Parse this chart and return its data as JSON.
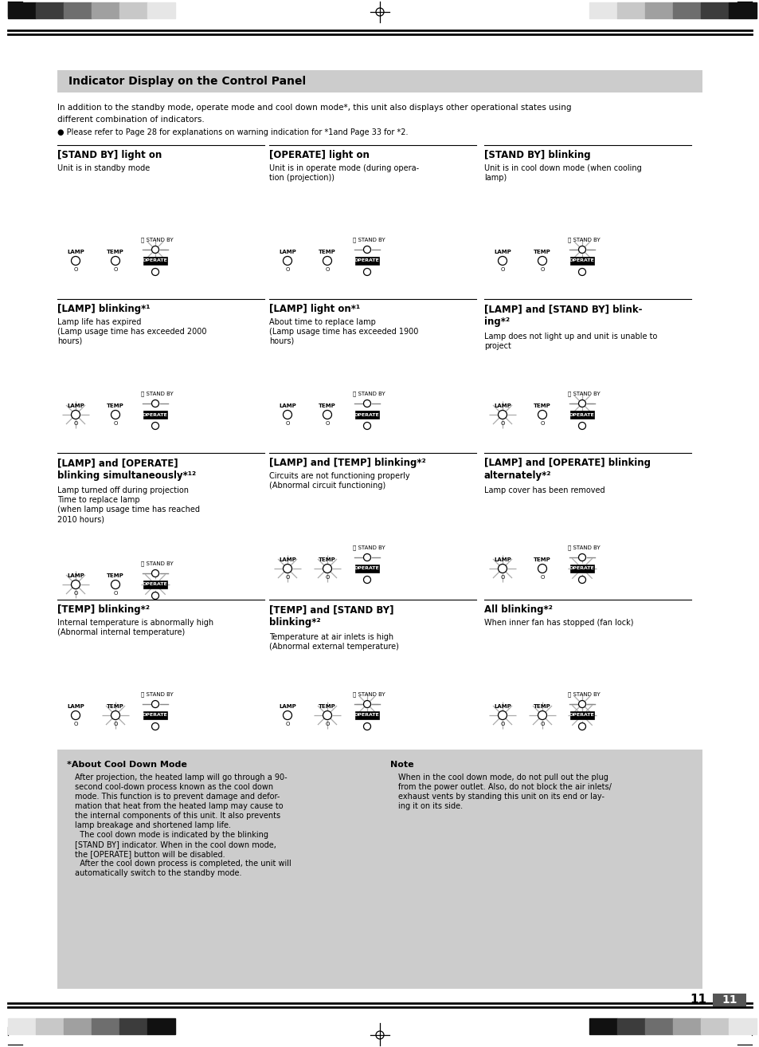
{
  "title": "Indicator Display on the Control Panel",
  "intro_line1": "In addition to the standby mode, operate mode and cool down mode*, this unit also displays other operational states using",
  "intro_line2": "different combination of indicators.",
  "bullet_text": "● Please refer to Page 28 for explanations on warning indication for *1and Page 33 for *2.",
  "sections": [
    {
      "title": "[STAND BY] light on",
      "title2": "",
      "desc": [
        "Unit is in standby mode"
      ],
      "lamp": false,
      "temp": false,
      "operate": true,
      "standby_glow": true,
      "standby_blink": false,
      "lamp_blink": false,
      "temp_blink": false,
      "operate_blink": false
    },
    {
      "title": "[OPERATE] light on",
      "title2": "",
      "desc": [
        "Unit is in operate mode (during opera-",
        "tion (projection))"
      ],
      "lamp": false,
      "temp": false,
      "operate": true,
      "standby_glow": false,
      "standby_blink": false,
      "lamp_blink": false,
      "temp_blink": false,
      "operate_blink": false,
      "operate_bright": true
    },
    {
      "title": "[STAND BY] blinking",
      "title2": "",
      "desc": [
        "Unit is in cool down mode (when cooling",
        "lamp)"
      ],
      "lamp": false,
      "temp": false,
      "operate": true,
      "standby_glow": false,
      "standby_blink": true,
      "lamp_blink": false,
      "temp_blink": false,
      "operate_blink": false
    },
    {
      "title": "[LAMP] blinking*¹",
      "title2": "",
      "desc": [
        "Lamp life has expired",
        "(Lamp usage time has exceeded 2000",
        "hours)"
      ],
      "lamp": false,
      "temp": false,
      "operate": true,
      "standby_glow": false,
      "standby_blink": false,
      "lamp_blink": true,
      "temp_blink": false,
      "operate_blink": false
    },
    {
      "title": "[LAMP] light on*¹",
      "title2": "",
      "desc": [
        "About time to replace lamp",
        "(Lamp usage time has exceeded 1900",
        "hours)"
      ],
      "lamp": true,
      "temp": false,
      "operate": true,
      "standby_glow": false,
      "standby_blink": false,
      "lamp_blink": false,
      "temp_blink": false,
      "operate_blink": false
    },
    {
      "title": "[LAMP] and [STAND BY] blink-",
      "title2": "ing*²",
      "desc": [
        "Lamp does not light up and unit is unable to",
        "project"
      ],
      "lamp": false,
      "temp": false,
      "operate": true,
      "standby_glow": false,
      "standby_blink": true,
      "lamp_blink": true,
      "temp_blink": false,
      "operate_blink": false
    },
    {
      "title": "[LAMP] and [OPERATE]",
      "title2": "blinking simultaneously*¹²",
      "desc": [
        "Lamp turned off during projection",
        "Time to replace lamp",
        "(when lamp usage time has reached",
        "2010 hours)"
      ],
      "lamp": false,
      "temp": false,
      "operate": true,
      "standby_glow": false,
      "standby_blink": false,
      "lamp_blink": true,
      "temp_blink": false,
      "operate_blink": true
    },
    {
      "title": "[LAMP] and [TEMP] blinking*²",
      "title2": "",
      "desc": [
        "Circuits are not functioning properly",
        "(Abnormal circuit functioning)"
      ],
      "lamp": false,
      "temp": false,
      "operate": true,
      "standby_glow": false,
      "standby_blink": false,
      "lamp_blink": true,
      "temp_blink": true,
      "operate_blink": false
    },
    {
      "title": "[LAMP] and [OPERATE] blinking",
      "title2": "alternately*²",
      "desc": [
        "Lamp cover has been removed"
      ],
      "lamp": false,
      "temp": false,
      "operate": true,
      "standby_glow": false,
      "standby_blink": false,
      "lamp_blink": true,
      "temp_blink": false,
      "operate_blink": true
    },
    {
      "title": "[TEMP] blinking*²",
      "title2": "",
      "desc": [
        "Internal temperature is abnormally high",
        "(Abnormal internal temperature)"
      ],
      "lamp": false,
      "temp": false,
      "operate": true,
      "standby_glow": false,
      "standby_blink": false,
      "lamp_blink": false,
      "temp_blink": true,
      "operate_blink": false
    },
    {
      "title": "[TEMP] and [STAND BY]",
      "title2": "blinking*²",
      "desc": [
        "Temperature at air inlets is high",
        "(Abnormal external temperature)"
      ],
      "lamp": false,
      "temp": false,
      "operate": true,
      "standby_glow": false,
      "standby_blink": true,
      "lamp_blink": false,
      "temp_blink": true,
      "operate_blink": false
    },
    {
      "title": "All blinking*²",
      "title2": "",
      "desc": [
        "When inner fan has stopped (fan lock)"
      ],
      "lamp": false,
      "temp": false,
      "operate": true,
      "standby_glow": false,
      "standby_blink": true,
      "lamp_blink": true,
      "temp_blink": true,
      "operate_blink": true
    }
  ],
  "cooldown_title": "*About Cool Down Mode",
  "cooldown_paras": [
    "After projection, the heated lamp will go through a 90-second cool-down process known as the cool down mode. This function is to prevent damage and deformation that heat from the heated lamp may cause to the internal components of this unit. It also prevents lamp breakage and shortened lamp life.",
    "The cool down mode is indicated by the blinking [STAND BY] indicator. When in the cool down mode, the [OPERATE] button will be disabled.",
    "After the cool down process is completed, the unit will automatically switch to the standby mode."
  ],
  "note_title": "Note",
  "note_text": "When in the cool down mode, do not pull out the plug from the power outlet. Also, do not block the air inlets/exhaust vents by standing this unit on its end or laying it on its side.",
  "page_number": "11"
}
